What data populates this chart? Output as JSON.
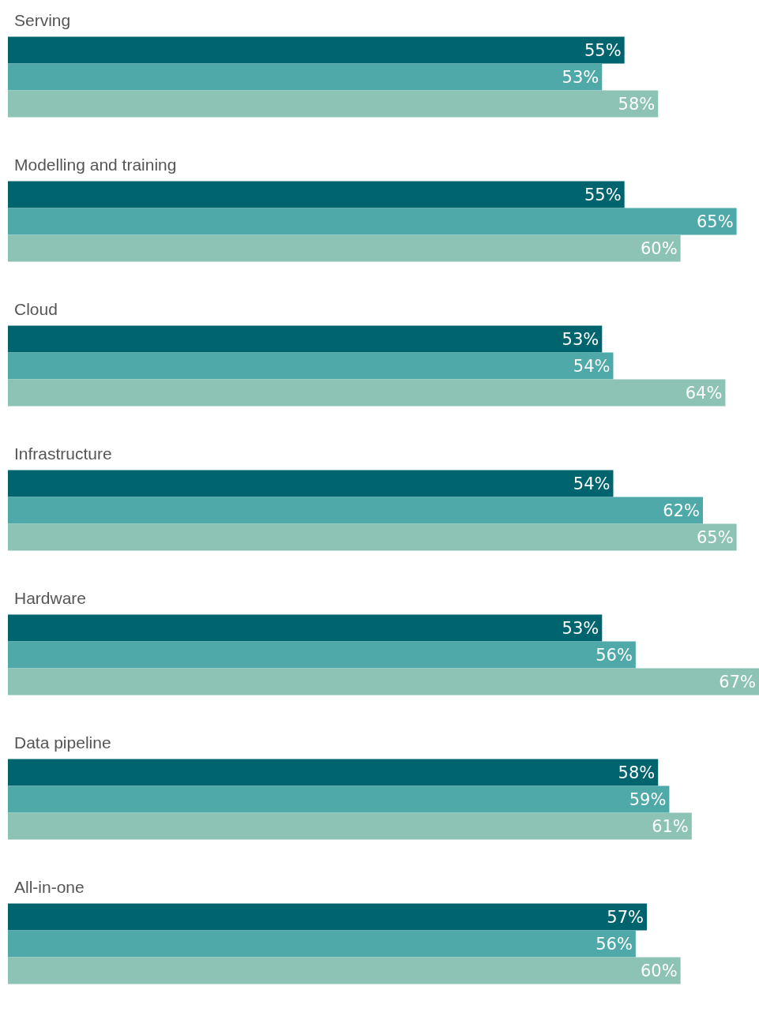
{
  "chart_data": {
    "type": "bar",
    "orientation": "horizontal",
    "categories": [
      "Serving",
      "Modelling and training",
      "Cloud",
      "Infrastructure",
      "Hardware",
      "Data pipeline",
      "All-in-one"
    ],
    "xlim": [
      0,
      67
    ],
    "series": [
      {
        "color": "#00646e",
        "values": [
          55,
          55,
          53,
          54,
          53,
          58,
          57
        ],
        "value_labels": [
          "55%",
          "55%",
          "53%",
          "54%",
          "53%",
          "58%",
          "57%"
        ]
      },
      {
        "color": "#4fa9a8",
        "values": [
          53,
          65,
          54,
          62,
          56,
          59,
          56
        ],
        "value_labels": [
          "53%",
          "65%",
          "54%",
          "62%",
          "56%",
          "59%",
          "56%"
        ]
      },
      {
        "color": "#8cc3b4",
        "values": [
          58,
          60,
          64,
          65,
          67,
          61,
          60
        ],
        "value_labels": [
          "58%",
          "60%",
          "64%",
          "65%",
          "67%",
          "61%",
          "60%"
        ]
      }
    ]
  }
}
